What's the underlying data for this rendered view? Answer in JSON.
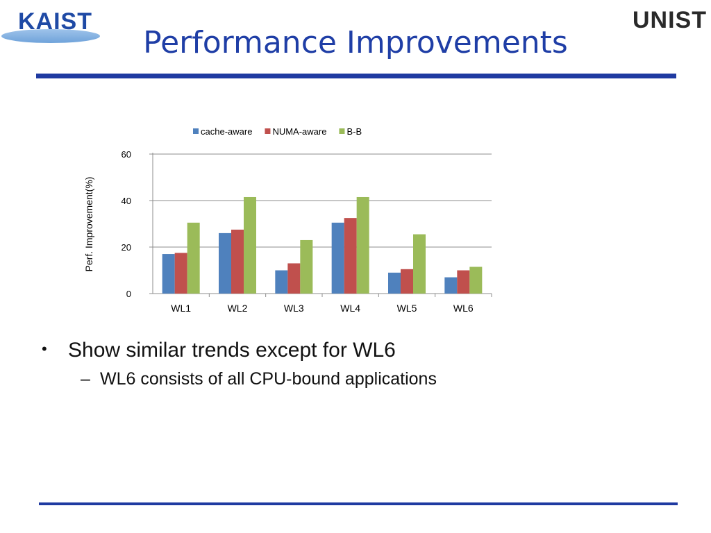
{
  "header": {
    "title": "Performance Improvements",
    "logo_left": "KAIST",
    "logo_right": "UNIST"
  },
  "bullets": {
    "main": "Show similar trends except for WL6",
    "sub": "WL6 consists of all CPU-bound applications"
  },
  "colors": {
    "title": "#1f3ea6",
    "rule": "#1f3aa1"
  },
  "chart_data": {
    "type": "bar",
    "categories": [
      "WL1",
      "WL2",
      "WL3",
      "WL4",
      "WL5",
      "WL6"
    ],
    "series": [
      {
        "name": "cache-aware",
        "color": "#4f81bd",
        "values": [
          17,
          26,
          10,
          30.5,
          9,
          7
        ]
      },
      {
        "name": "NUMA-aware",
        "color": "#c0504d",
        "values": [
          17.5,
          27.5,
          13,
          32.5,
          10.5,
          10
        ]
      },
      {
        "name": "B-B",
        "color": "#9bbb59",
        "values": [
          30.5,
          41.5,
          23,
          41.5,
          25.5,
          11.5
        ]
      }
    ],
    "ylabel": "Perf. Improvement(%)",
    "xlabel": "",
    "ylim": [
      0,
      60
    ],
    "yticks": [
      0,
      20,
      40,
      60
    ],
    "grid": true,
    "legend": "top"
  }
}
